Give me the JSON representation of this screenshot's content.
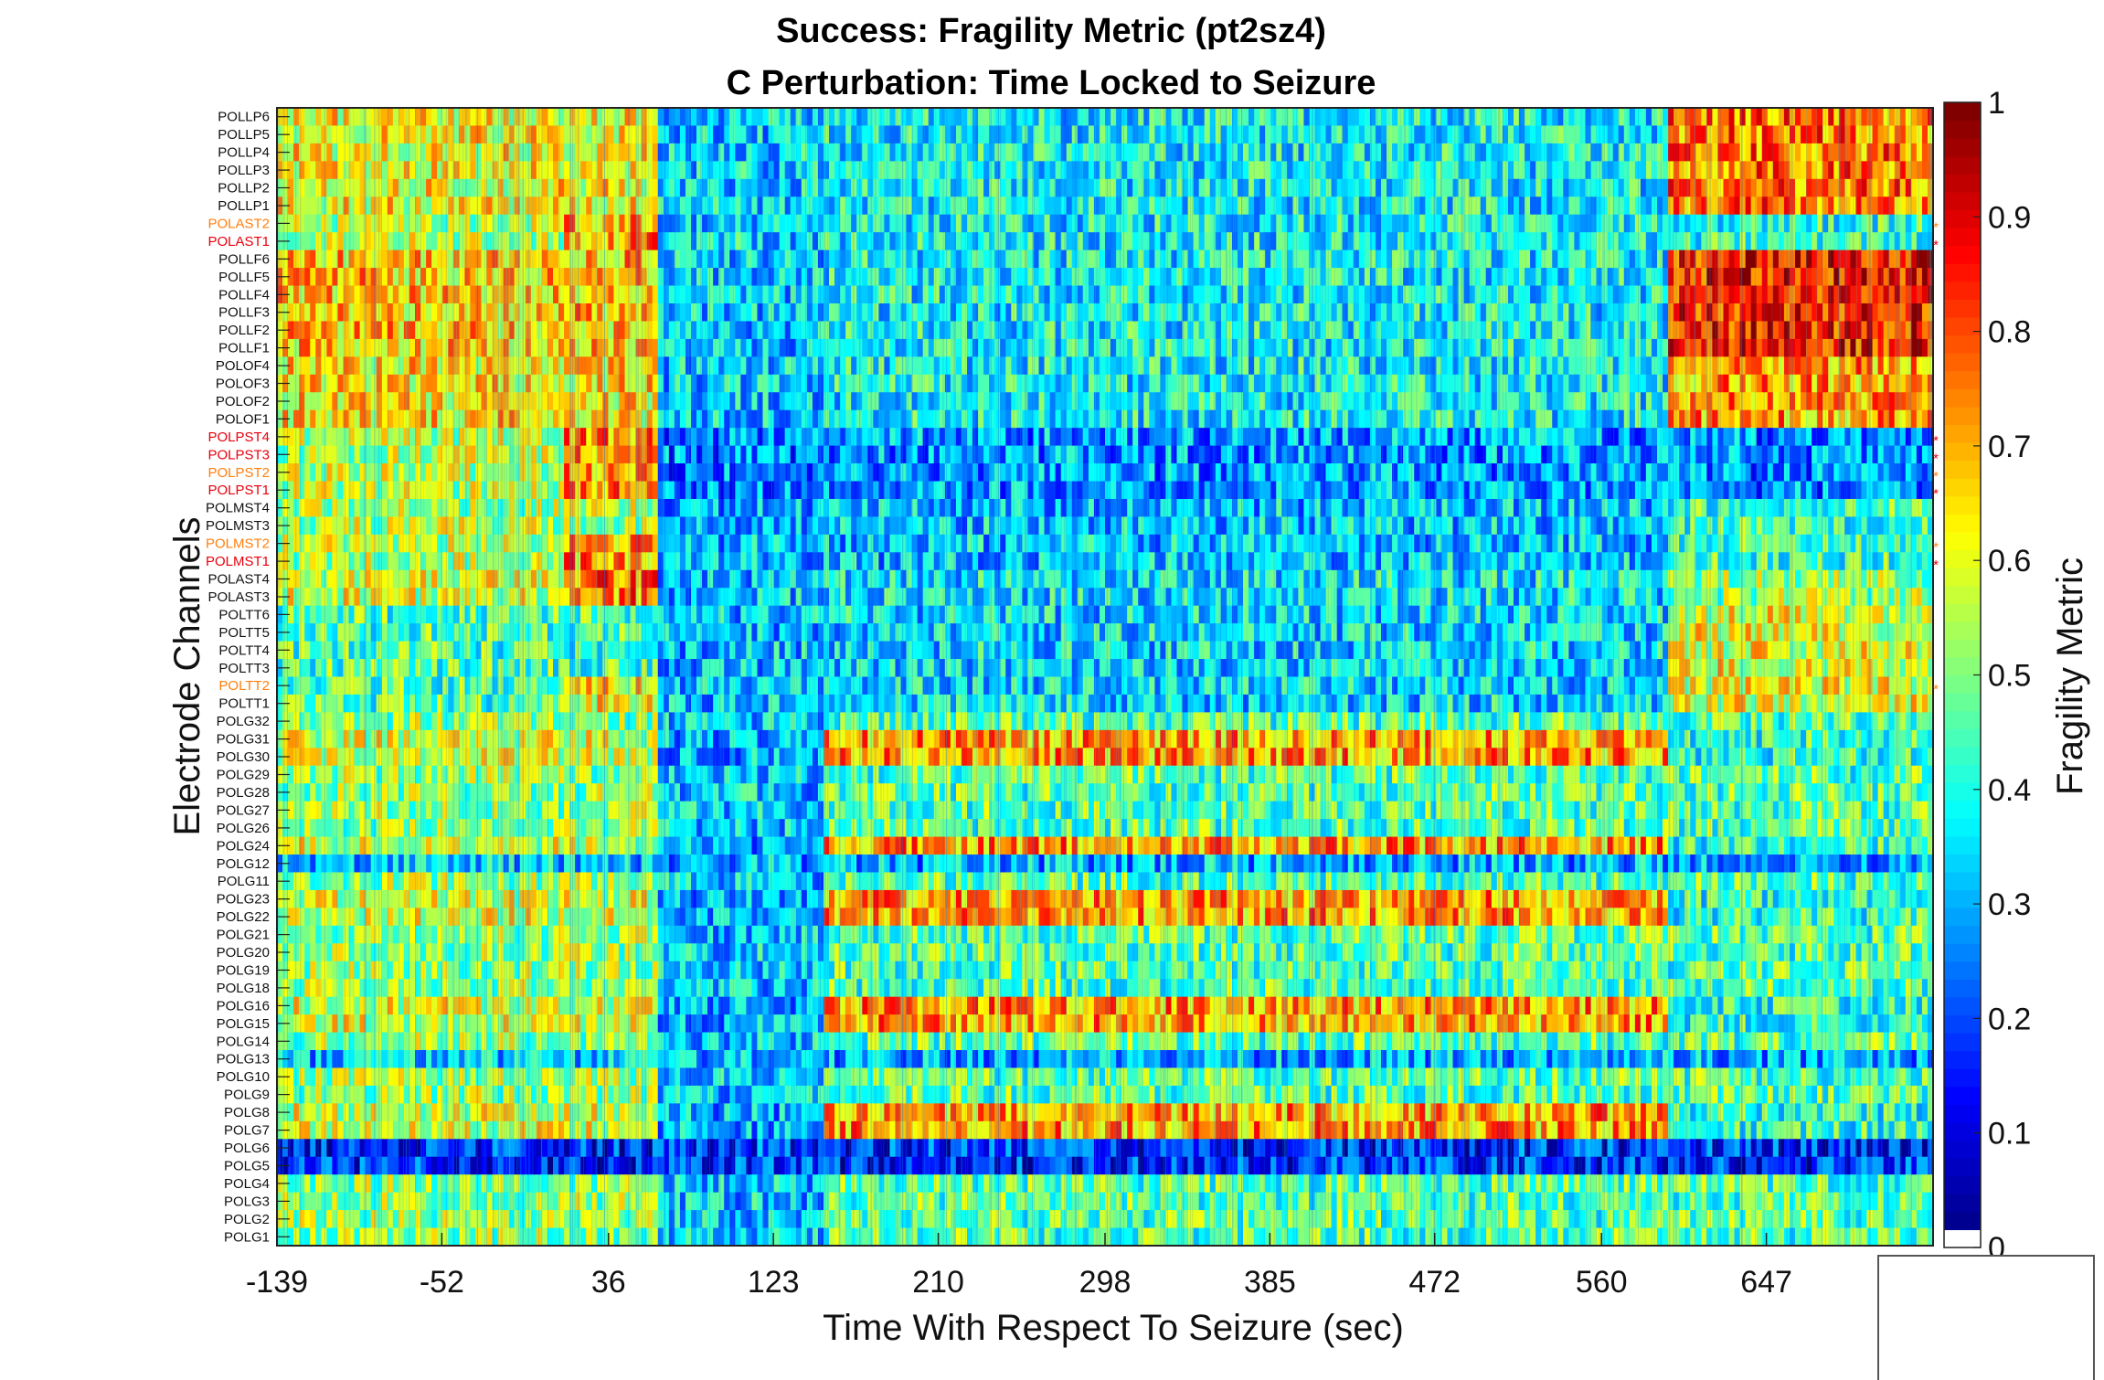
{
  "chart_data": {
    "type": "heatmap",
    "title": "Success: Fragility Metric (pt2sz4)",
    "subtitle": "C Perturbation:  Time Locked to Seizure",
    "xlabel": "Time With Respect To Seizure (sec)",
    "ylabel": "Electrode Channels",
    "x_ticks": [
      "-139",
      "-52",
      "36",
      "123",
      "210",
      "298",
      "385",
      "472",
      "560",
      "647"
    ],
    "x_range": [
      -139,
      735
    ],
    "colorbar": {
      "label": "Fragility Metric",
      "ticks": [
        "0",
        "0.1",
        "0.2",
        "0.3",
        "0.4",
        "0.5",
        "0.6",
        "0.7",
        "0.8",
        "0.9",
        "1"
      ],
      "range": [
        0,
        1
      ],
      "colormap": "jet"
    },
    "channels": [
      {
        "name": "POLLP6"
      },
      {
        "name": "POLLP5"
      },
      {
        "name": "POLLP4"
      },
      {
        "name": "POLLP3"
      },
      {
        "name": "POLLP2"
      },
      {
        "name": "POLLP1"
      },
      {
        "name": "POLAST2",
        "color": "#ff7f0e",
        "marker": "*"
      },
      {
        "name": "POLAST1",
        "color": "#e8000b",
        "marker": "*"
      },
      {
        "name": "POLLF6"
      },
      {
        "name": "POLLF5"
      },
      {
        "name": "POLLF4"
      },
      {
        "name": "POLLF3"
      },
      {
        "name": "POLLF2"
      },
      {
        "name": "POLLF1"
      },
      {
        "name": "POLOF4"
      },
      {
        "name": "POLOF3"
      },
      {
        "name": "POLOF2"
      },
      {
        "name": "POLOF1"
      },
      {
        "name": "POLPST4",
        "color": "#e8000b",
        "marker": "*"
      },
      {
        "name": "POLPST3",
        "color": "#e8000b",
        "marker": "*"
      },
      {
        "name": "POLPST2",
        "color": "#ff7f0e",
        "marker": "*"
      },
      {
        "name": "POLPST1",
        "color": "#e8000b",
        "marker": "*"
      },
      {
        "name": "POLMST4"
      },
      {
        "name": "POLMST3"
      },
      {
        "name": "POLMST2",
        "color": "#ff7f0e",
        "marker": "*"
      },
      {
        "name": "POLMST1",
        "color": "#e8000b",
        "marker": "*"
      },
      {
        "name": "POLAST4"
      },
      {
        "name": "POLAST3"
      },
      {
        "name": "POLTT6"
      },
      {
        "name": "POLTT5"
      },
      {
        "name": "POLTT4"
      },
      {
        "name": "POLTT3"
      },
      {
        "name": "POLTT2",
        "color": "#ff7f0e",
        "marker": "*"
      },
      {
        "name": "POLTT1"
      },
      {
        "name": "POLG32"
      },
      {
        "name": "POLG31"
      },
      {
        "name": "POLG30"
      },
      {
        "name": "POLG29"
      },
      {
        "name": "POLG28"
      },
      {
        "name": "POLG27"
      },
      {
        "name": "POLG26"
      },
      {
        "name": "POLG24"
      },
      {
        "name": "POLG12"
      },
      {
        "name": "POLG11"
      },
      {
        "name": "POLG23"
      },
      {
        "name": "POLG22"
      },
      {
        "name": "POLG21"
      },
      {
        "name": "POLG20"
      },
      {
        "name": "POLG19"
      },
      {
        "name": "POLG18"
      },
      {
        "name": "POLG16"
      },
      {
        "name": "POLG15"
      },
      {
        "name": "POLG14"
      },
      {
        "name": "POLG13"
      },
      {
        "name": "POLG10"
      },
      {
        "name": "POLG9"
      },
      {
        "name": "POLG8"
      },
      {
        "name": "POLG7"
      },
      {
        "name": "POLG6"
      },
      {
        "name": "POLG5"
      },
      {
        "name": "POLG4"
      },
      {
        "name": "POLG3"
      },
      {
        "name": "POLG2"
      },
      {
        "name": "POLG1"
      }
    ],
    "colors": {
      "marker_red": "#e8000b",
      "marker_orange": "#ff7f0e"
    }
  }
}
